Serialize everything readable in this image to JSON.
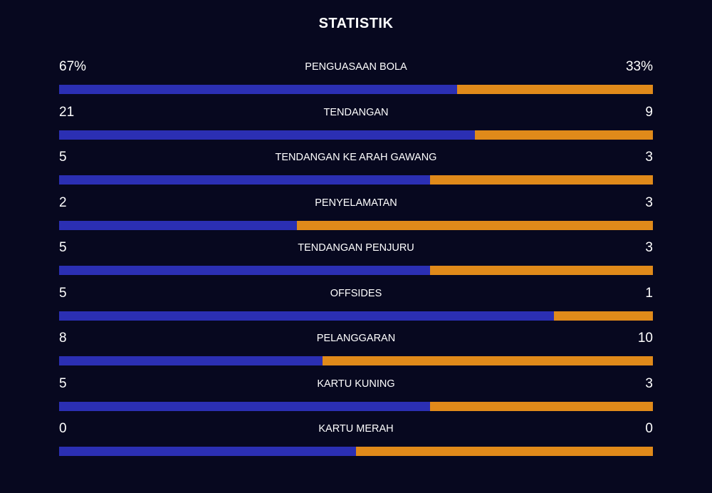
{
  "title": "STATISTIK",
  "colors": {
    "background": "#07081f",
    "home": "#2b2fb3",
    "away": "#e08a1a",
    "text": "#ffffff"
  },
  "stats": [
    {
      "label": "PENGUASAAN BOLA",
      "home": "67%",
      "away": "33%",
      "home_share": 0.67
    },
    {
      "label": "TENDANGAN",
      "home": "21",
      "away": "9",
      "home_share": 0.7
    },
    {
      "label": "TENDANGAN KE ARAH GAWANG",
      "home": "5",
      "away": "3",
      "home_share": 0.625
    },
    {
      "label": "PENYELAMATAN",
      "home": "2",
      "away": "3",
      "home_share": 0.4
    },
    {
      "label": "TENDANGAN PENJURU",
      "home": "5",
      "away": "3",
      "home_share": 0.625
    },
    {
      "label": "OFFSIDES",
      "home": "5",
      "away": "1",
      "home_share": 0.833
    },
    {
      "label": "PELANGGARAN",
      "home": "8",
      "away": "10",
      "home_share": 0.444
    },
    {
      "label": "KARTU KUNING",
      "home": "5",
      "away": "3",
      "home_share": 0.625
    },
    {
      "label": "KARTU MERAH",
      "home": "0",
      "away": "0",
      "home_share": 0.5
    }
  ]
}
